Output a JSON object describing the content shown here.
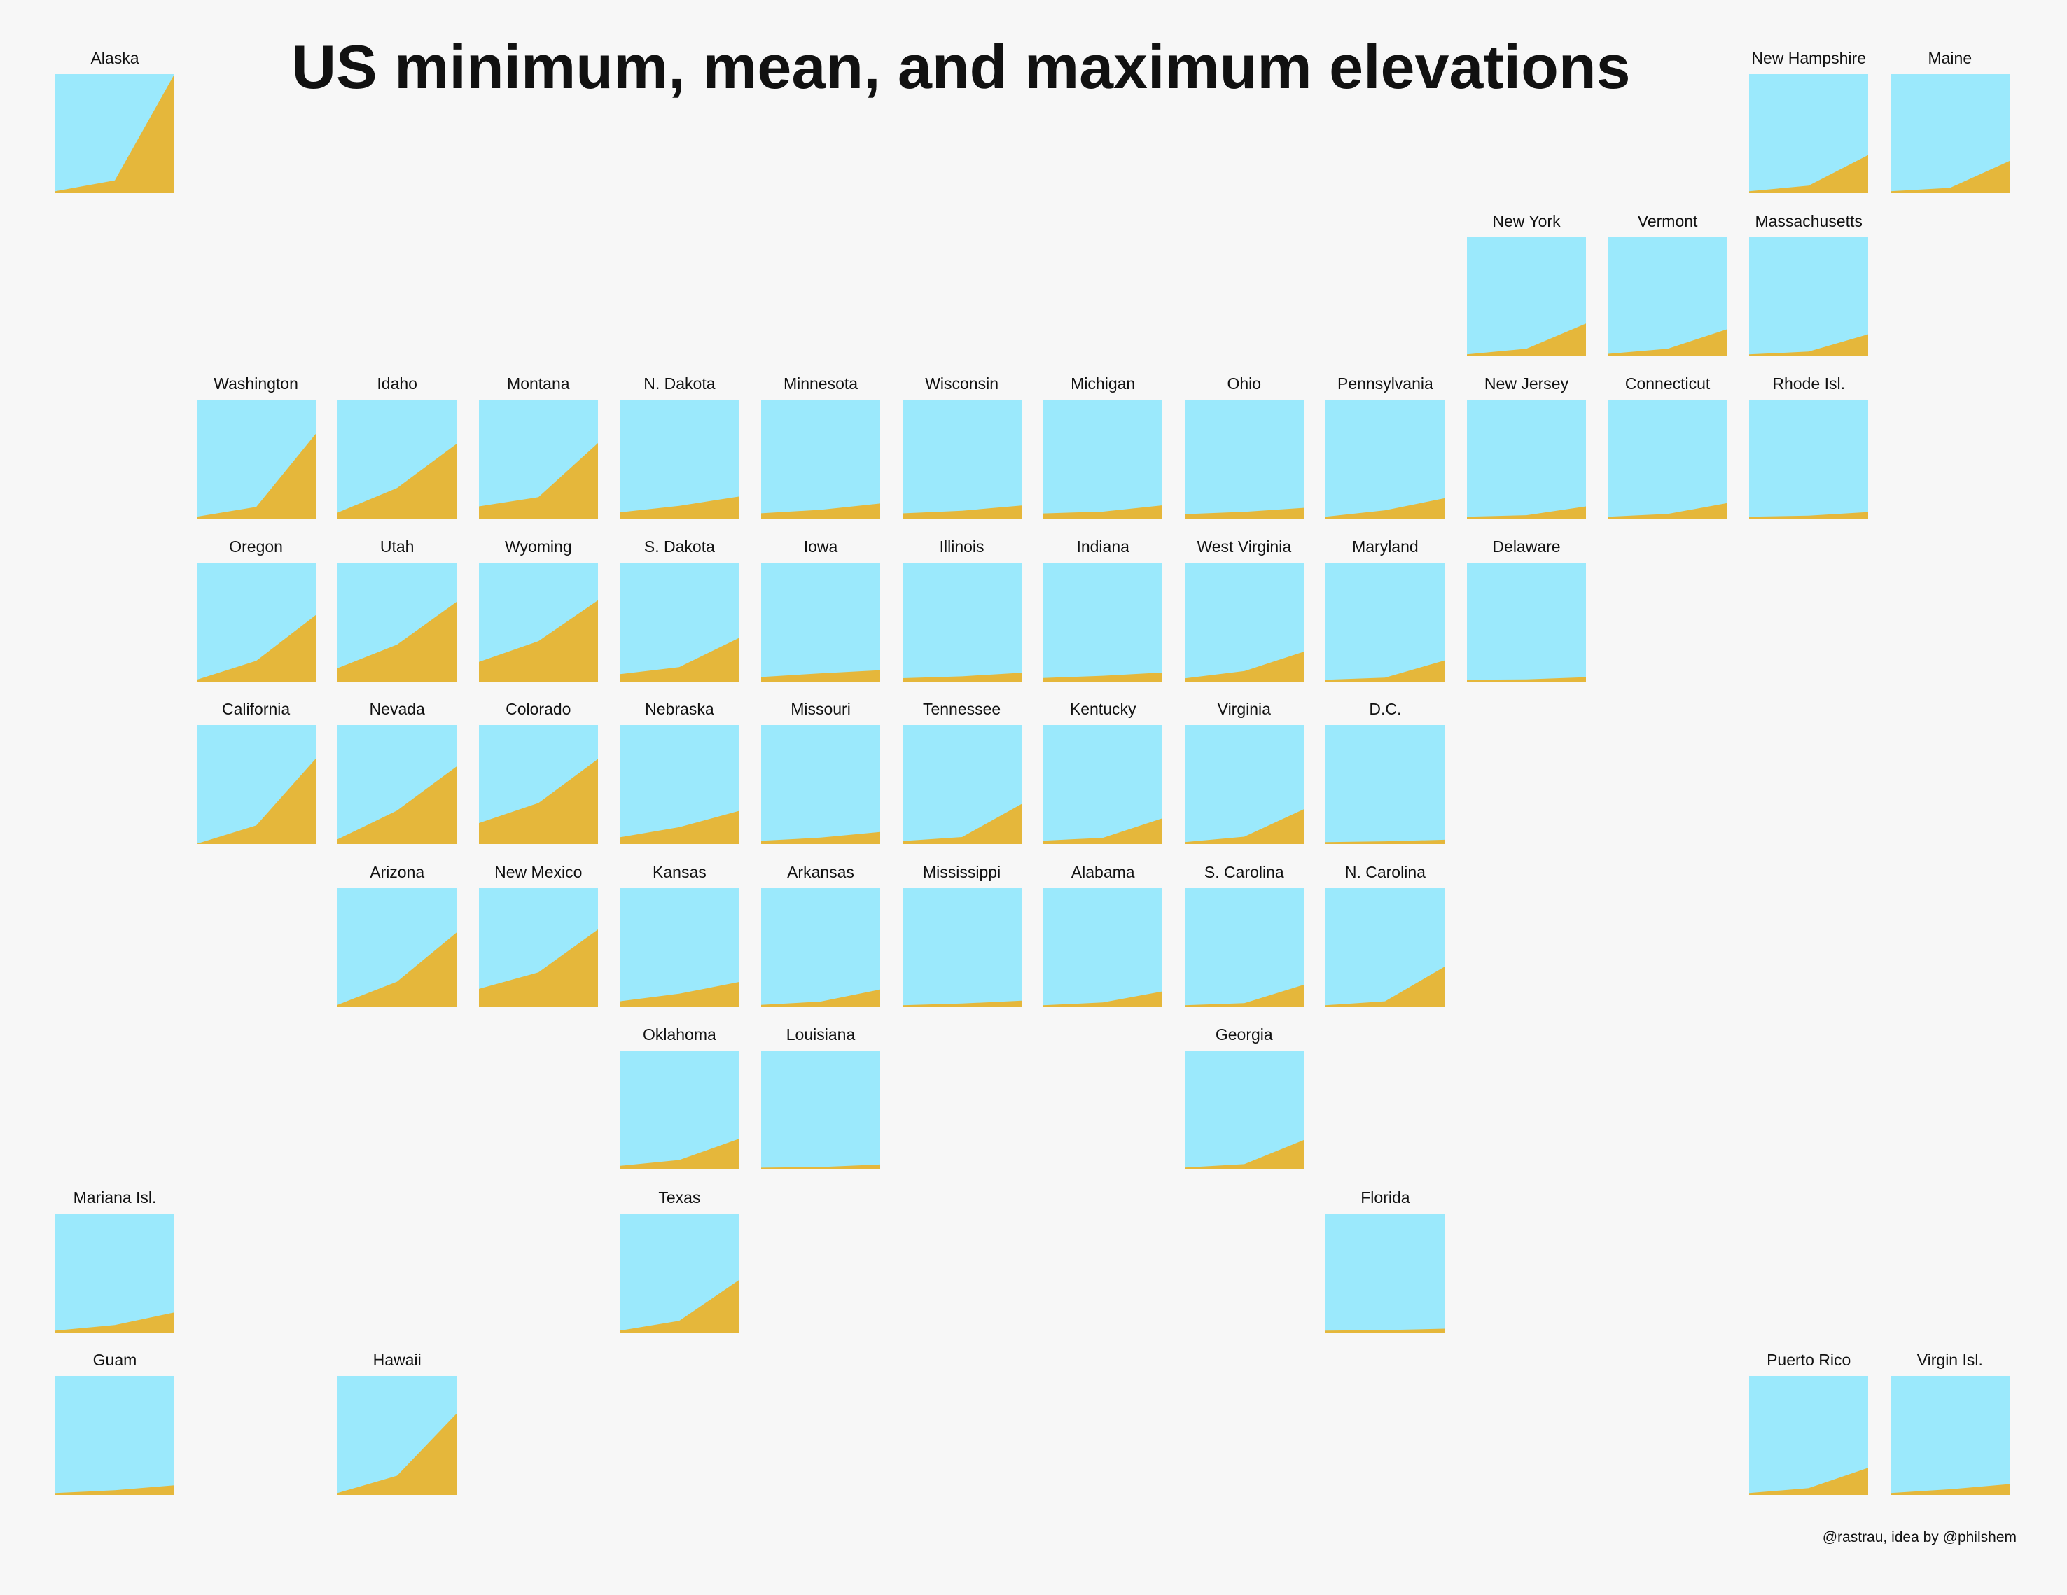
{
  "chart_data": {
    "type": "area",
    "title": "US minimum, mean, and maximum elevations",
    "credit": "@rastrau, idea by @philshem",
    "x": [
      "min",
      "mean",
      "max"
    ],
    "ylim": [
      -100,
      6200
    ],
    "unit": "m",
    "colors": {
      "sky": "#9be9fc",
      "ground": "#e5b73b",
      "background": "#f7f7f7"
    },
    "states": [
      {
        "name": "Alaska",
        "row": 0,
        "col": 0,
        "values": [
          0,
          580,
          6190
        ]
      },
      {
        "name": "New Hampshire",
        "row": 0,
        "col": 12,
        "values": [
          0,
          300,
          1917
        ]
      },
      {
        "name": "Maine",
        "row": 0,
        "col": 13,
        "values": [
          0,
          180,
          1606
        ]
      },
      {
        "name": "New York",
        "row": 1,
        "col": 10,
        "values": [
          0,
          300,
          1629
        ]
      },
      {
        "name": "Vermont",
        "row": 1,
        "col": 11,
        "values": [
          30,
          300,
          1339
        ]
      },
      {
        "name": "Massachusetts",
        "row": 1,
        "col": 12,
        "values": [
          0,
          150,
          1063
        ]
      },
      {
        "name": "Washington",
        "row": 2,
        "col": 1,
        "values": [
          0,
          520,
          4392
        ]
      },
      {
        "name": "Idaho",
        "row": 2,
        "col": 2,
        "values": [
          216,
          1524,
          3859
        ]
      },
      {
        "name": "Montana",
        "row": 2,
        "col": 3,
        "values": [
          549,
          1037,
          3904
        ]
      },
      {
        "name": "N. Dakota",
        "row": 2,
        "col": 4,
        "values": [
          229,
          579,
          1069
        ]
      },
      {
        "name": "Minnesota",
        "row": 2,
        "col": 5,
        "values": [
          183,
          366,
          701
        ]
      },
      {
        "name": "Wisconsin",
        "row": 2,
        "col": 6,
        "values": [
          177,
          320,
          595
        ]
      },
      {
        "name": "Michigan",
        "row": 2,
        "col": 7,
        "values": [
          174,
          270,
          603
        ]
      },
      {
        "name": "Ohio",
        "row": 2,
        "col": 8,
        "values": [
          139,
          260,
          472
        ]
      },
      {
        "name": "Pennsylvania",
        "row": 2,
        "col": 9,
        "values": [
          0,
          340,
          979
        ]
      },
      {
        "name": "New Jersey",
        "row": 2,
        "col": 10,
        "values": [
          0,
          80,
          550
        ]
      },
      {
        "name": "Connecticut",
        "row": 2,
        "col": 11,
        "values": [
          0,
          150,
          725
        ]
      },
      {
        "name": "Rhode Isl.",
        "row": 2,
        "col": 12,
        "values": [
          0,
          60,
          247
        ]
      },
      {
        "name": "Oregon",
        "row": 3,
        "col": 1,
        "values": [
          0,
          1000,
          3425
        ]
      },
      {
        "name": "Utah",
        "row": 3,
        "col": 2,
        "values": [
          610,
          1859,
          4123
        ]
      },
      {
        "name": "Wyoming",
        "row": 3,
        "col": 3,
        "values": [
          945,
          2044,
          4209
        ]
      },
      {
        "name": "S. Dakota",
        "row": 3,
        "col": 4,
        "values": [
          297,
          671,
          2208
        ]
      },
      {
        "name": "Iowa",
        "row": 3,
        "col": 5,
        "values": [
          146,
          340,
          509
        ]
      },
      {
        "name": "Illinois",
        "row": 3,
        "col": 6,
        "values": [
          85,
          180,
          376
        ]
      },
      {
        "name": "Indiana",
        "row": 3,
        "col": 7,
        "values": [
          97,
          210,
          383
        ]
      },
      {
        "name": "West Virginia",
        "row": 3,
        "col": 8,
        "values": [
          73,
          460,
          1482
        ]
      },
      {
        "name": "Maryland",
        "row": 3,
        "col": 9,
        "values": [
          0,
          110,
          1024
        ]
      },
      {
        "name": "Delaware",
        "row": 3,
        "col": 10,
        "values": [
          0,
          20,
          136
        ]
      },
      {
        "name": "California",
        "row": 4,
        "col": 1,
        "values": [
          -86,
          884,
          4421
        ]
      },
      {
        "name": "Nevada",
        "row": 4,
        "col": 2,
        "values": [
          147,
          1676,
          4007
        ]
      },
      {
        "name": "Colorado",
        "row": 4,
        "col": 3,
        "values": [
          1011,
          2073,
          4401
        ]
      },
      {
        "name": "Nebraska",
        "row": 4,
        "col": 4,
        "values": [
          256,
          792,
          1654
        ]
      },
      {
        "name": "Missouri",
        "row": 4,
        "col": 5,
        "values": [
          70,
          240,
          540
        ]
      },
      {
        "name": "Tennessee",
        "row": 4,
        "col": 6,
        "values": [
          54,
          270,
          2025
        ]
      },
      {
        "name": "Kentucky",
        "row": 4,
        "col": 7,
        "values": [
          78,
          230,
          1263
        ]
      },
      {
        "name": "Virginia",
        "row": 4,
        "col": 8,
        "values": [
          0,
          290,
          1746
        ]
      },
      {
        "name": "D.C.",
        "row": 4,
        "col": 9,
        "values": [
          0,
          46,
          125
        ]
      },
      {
        "name": "Arizona",
        "row": 5,
        "col": 2,
        "values": [
          22,
          1250,
          3852
        ]
      },
      {
        "name": "New Mexico",
        "row": 5,
        "col": 3,
        "values": [
          866,
          1740,
          4012
        ]
      },
      {
        "name": "Kansas",
        "row": 5,
        "col": 4,
        "values": [
          207,
          610,
          1232
        ]
      },
      {
        "name": "Arkansas",
        "row": 5,
        "col": 5,
        "values": [
          17,
          198,
          839
        ]
      },
      {
        "name": "Mississippi",
        "row": 5,
        "col": 6,
        "values": [
          0,
          91,
          246
        ]
      },
      {
        "name": "Alabama",
        "row": 5,
        "col": 7,
        "values": [
          0,
          150,
          734
        ]
      },
      {
        "name": "S. Carolina",
        "row": 5,
        "col": 8,
        "values": [
          0,
          110,
          1085
        ]
      },
      {
        "name": "N. Carolina",
        "row": 5,
        "col": 9,
        "values": [
          0,
          210,
          2037
        ]
      },
      {
        "name": "Oklahoma",
        "row": 6,
        "col": 4,
        "values": [
          88,
          400,
          1516
        ]
      },
      {
        "name": "Louisiana",
        "row": 6,
        "col": 5,
        "values": [
          -2,
          30,
          163
        ]
      },
      {
        "name": "Georgia",
        "row": 6,
        "col": 8,
        "values": [
          0,
          180,
          1458
        ]
      },
      {
        "name": "Mariana Isl.",
        "row": 7,
        "col": 0,
        "values": [
          0,
          300,
          965
        ]
      },
      {
        "name": "Texas",
        "row": 7,
        "col": 4,
        "values": [
          0,
          520,
          2667
        ]
      },
      {
        "name": "Florida",
        "row": 7,
        "col": 9,
        "values": [
          0,
          30,
          105
        ]
      },
      {
        "name": "Guam",
        "row": 8,
        "col": 0,
        "values": [
          0,
          150,
          406
        ]
      },
      {
        "name": "Hawaii",
        "row": 8,
        "col": 2,
        "values": [
          0,
          920,
          4205
        ]
      },
      {
        "name": "Puerto Rico",
        "row": 8,
        "col": 12,
        "values": [
          0,
          260,
          1338
        ]
      },
      {
        "name": "Virgin Isl.",
        "row": 8,
        "col": 13,
        "values": [
          0,
          200,
          474
        ]
      }
    ]
  }
}
